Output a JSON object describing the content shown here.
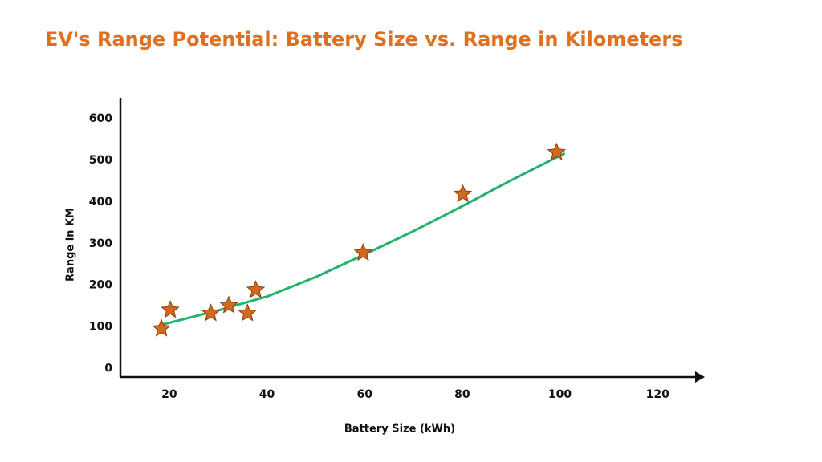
{
  "chart_data": {
    "type": "scatter",
    "title": "EV's Range Potential: Battery Size vs. Range in Kilometers",
    "x_label": "Battery Size (kWh)",
    "y_label": "Range in KM",
    "x": [
      18.4,
      20.2,
      28.5,
      32.2,
      36,
      37.7,
      59.7,
      80.1,
      99.3
    ],
    "values": [
      96,
      141,
      133,
      152,
      133,
      189,
      278,
      419,
      519
    ],
    "color": "#d2691e",
    "trend_x": [
      18,
      30,
      40,
      50,
      60,
      70,
      80,
      90,
      101
    ],
    "trend_y": [
      104,
      140,
      173,
      220,
      274,
      330,
      390,
      452,
      517
    ],
    "trend_color": "#1fb36b",
    "xlim": [
      10,
      129
    ],
    "ylim": [
      -20,
      650
    ],
    "xticks": [
      20,
      40,
      60,
      80,
      100,
      120
    ],
    "yticks": [
      0,
      100,
      200,
      300,
      400,
      500,
      600
    ],
    "grid": false
  }
}
